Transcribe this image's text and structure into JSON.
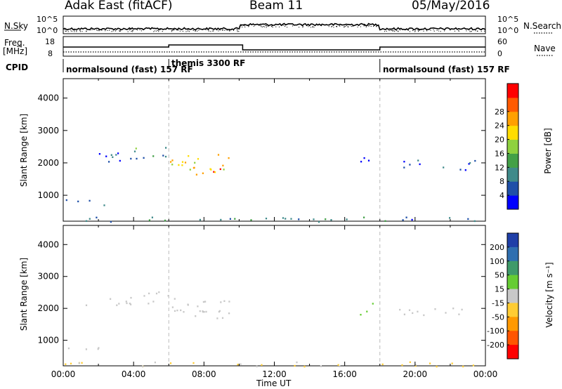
{
  "header": {
    "station": "Adak East (fitACF)",
    "beam": "Beam 11",
    "date": "05/May/2016"
  },
  "labels": {
    "nsky": "N.Sky",
    "nsearch": "N.Search",
    "freq": "Freq.",
    "freq_unit": "[MHz]",
    "nave": "Nave",
    "cpid": "CPID",
    "nsky_ticks": [
      "10^5",
      "10^0"
    ],
    "nsearch_ticks": [
      "10^5",
      "10^0"
    ],
    "freq_ticks": [
      "18",
      "8"
    ],
    "nave_ticks": [
      "60",
      "0"
    ],
    "xlabel": "Time UT"
  },
  "cpid_segments": [
    {
      "label": "normalsound (fast) 157 RF",
      "start": 0,
      "end": 6
    },
    {
      "label": "themis 3300 RF",
      "start": 6,
      "end": 18
    },
    {
      "label": "normalsound (fast) 157 RF",
      "start": 18,
      "end": 24
    }
  ],
  "chart_data": [
    {
      "type": "heatmap",
      "panel": "power",
      "ylabel": "Slant Range [km]",
      "xlabel": "",
      "x_range_hours": [
        0,
        24
      ],
      "xticks": [
        "00:00",
        "04:00",
        "08:00",
        "12:00",
        "16:00",
        "20:00",
        "00:00"
      ],
      "ylim": [
        200,
        4600
      ],
      "yticks": [
        1000,
        2000,
        3000,
        4000
      ],
      "colorbar": {
        "label": "Power [dB]",
        "ticks": [
          4,
          8,
          12,
          16,
          20,
          24,
          28
        ],
        "range": [
          0,
          30
        ],
        "colors": [
          "#0000ff",
          "#1f4fa8",
          "#3f8a8a",
          "#43a047",
          "#8fd13f",
          "#ffdd00",
          "#ffa000",
          "#ff5a00",
          "#ff0000"
        ]
      },
      "regions": [
        {
          "t0": 0.0,
          "t1": 2.5,
          "r0": 700,
          "r1": 900,
          "value": 9
        },
        {
          "t0": 1.0,
          "t1": 4.0,
          "r0": 2050,
          "r1": 2350,
          "value": 6
        },
        {
          "t0": 3.8,
          "t1": 6.5,
          "r0": 2150,
          "r1": 2550,
          "value": 10
        },
        {
          "t0": 6.0,
          "t1": 9.6,
          "r0": 1700,
          "r1": 2300,
          "value": 18
        },
        {
          "t0": 7.3,
          "t1": 9.4,
          "r0": 1600,
          "r1": 1950,
          "value": 24
        },
        {
          "t0": 16.8,
          "t1": 17.6,
          "r0": 1800,
          "r1": 2300,
          "value": 4
        },
        {
          "t0": 19.0,
          "t1": 23.5,
          "r0": 1800,
          "r1": 2100,
          "value": 4
        },
        {
          "t0": 0.0,
          "t1": 24.0,
          "r0": 200,
          "r1": 350,
          "value": 8
        }
      ]
    },
    {
      "type": "heatmap",
      "panel": "velocity",
      "ylabel": "Slant Range [km]",
      "xlabel": "Time UT",
      "x_range_hours": [
        0,
        24
      ],
      "xticks": [
        "00:00",
        "04:00",
        "08:00",
        "12:00",
        "16:00",
        "20:00",
        "00:00"
      ],
      "ylim": [
        200,
        4600
      ],
      "yticks": [
        1000,
        2000,
        3000,
        4000
      ],
      "colorbar": {
        "label": "Velocity [m s⁻¹]",
        "ticks": [
          "200",
          "100",
          "50",
          "15",
          "-15",
          "-50",
          "-100",
          "-200"
        ],
        "colors": [
          "#1f3fa8",
          "#2f6fb0",
          "#3f9a6a",
          "#66cc33",
          "#c8c8c8",
          "#ffcc33",
          "#ff9900",
          "#ff5500",
          "#ff0000"
        ]
      },
      "regions": [
        {
          "t0": 0.0,
          "t1": 2.5,
          "r0": 700,
          "r1": 900,
          "value": 0
        },
        {
          "t0": 1.0,
          "t1": 4.0,
          "r0": 2050,
          "r1": 2350,
          "value": 0
        },
        {
          "t0": 3.8,
          "t1": 6.5,
          "r0": 2150,
          "r1": 2550,
          "value": 0
        },
        {
          "t0": 6.0,
          "t1": 9.6,
          "r0": 1700,
          "r1": 2300,
          "value": 0
        },
        {
          "t0": 7.3,
          "t1": 9.4,
          "r0": 1600,
          "r1": 1950,
          "value": 0
        },
        {
          "t0": 16.8,
          "t1": 17.6,
          "r0": 1800,
          "r1": 2300,
          "value": 30
        },
        {
          "t0": 19.0,
          "t1": 23.5,
          "r0": 1800,
          "r1": 2100,
          "value": 0
        },
        {
          "t0": 0.0,
          "t1": 24.0,
          "r0": 200,
          "r1": 350,
          "value": -20
        }
      ]
    }
  ]
}
